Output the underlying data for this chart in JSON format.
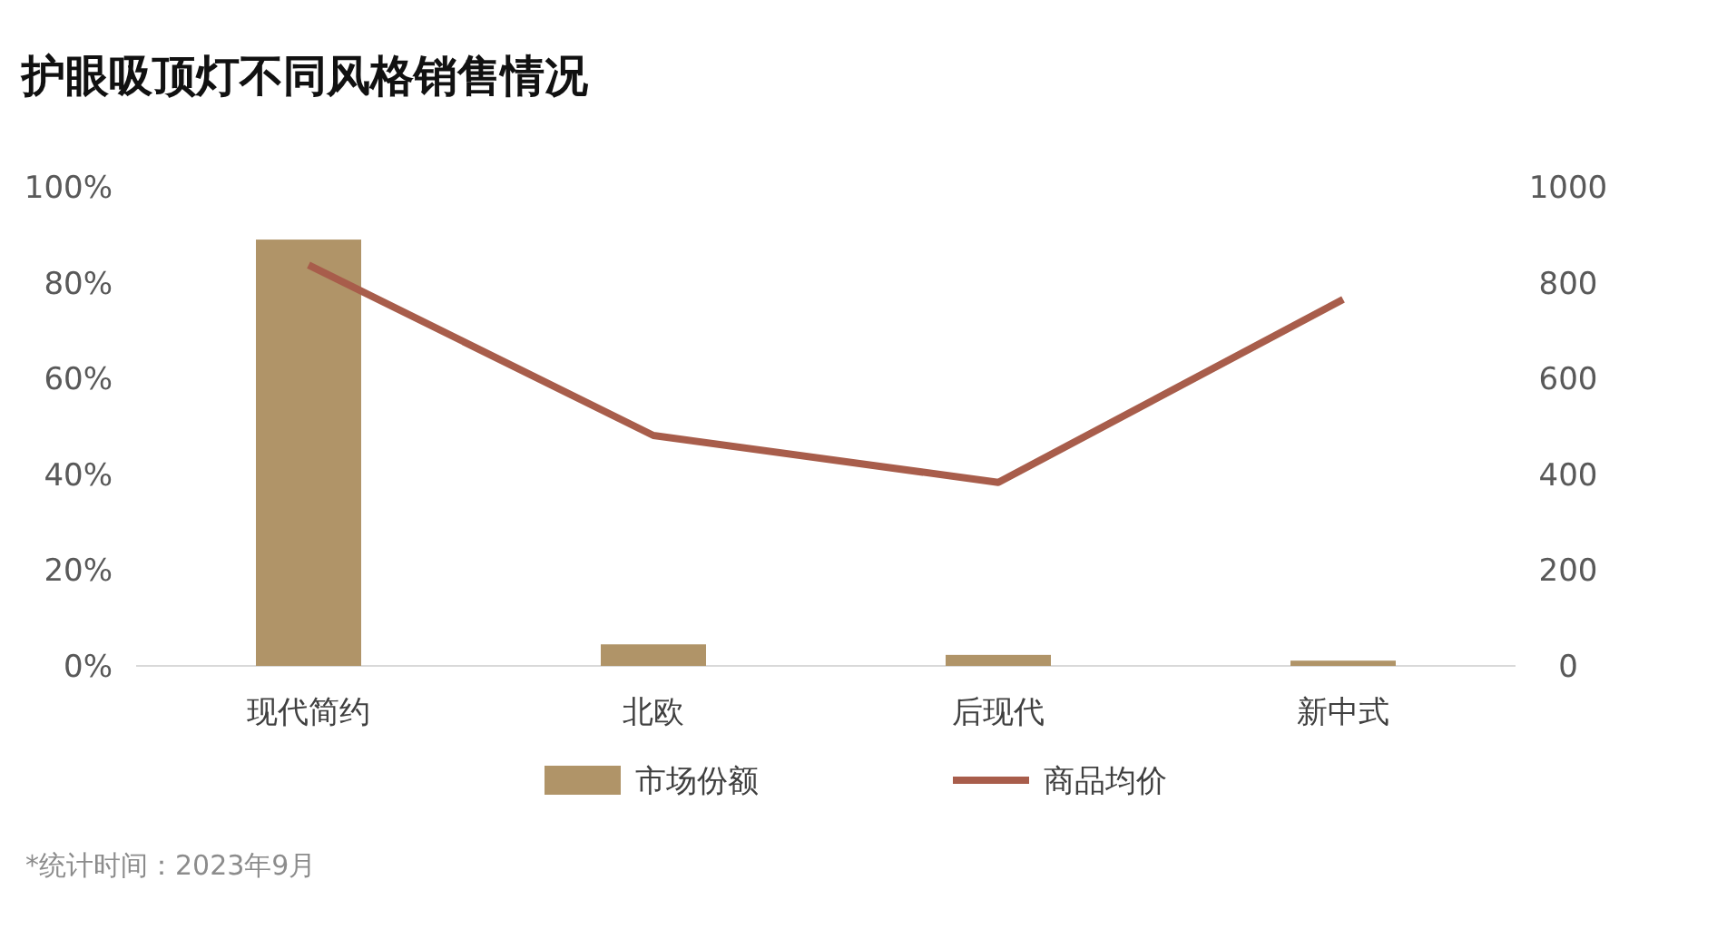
{
  "chart_data": {
    "type": "bar",
    "title": "护眼吸顶灯不同风格销售情况",
    "categories": [
      "现代简约",
      "北欧",
      "后现代",
      "新中式"
    ],
    "series": [
      {
        "name": "市场份额",
        "color": "#b09468",
        "values": [
          89,
          4.5,
          2.3,
          1.1
        ]
      },
      {
        "name": "商品均价",
        "type": "line",
        "axis": "y2",
        "color": "#a85d4b",
        "values": [
          837,
          481,
          383,
          765
        ]
      }
    ],
    "ylim": [
      0,
      100
    ],
    "yticks": [
      {
        "value": 0,
        "label": "0%"
      },
      {
        "value": 20,
        "label": "20%"
      },
      {
        "value": 40,
        "label": "40%"
      },
      {
        "value": 60,
        "label": "60%"
      },
      {
        "value": 80,
        "label": "80%"
      },
      {
        "value": 100,
        "label": "100%"
      }
    ],
    "y2lim": [
      0,
      1000
    ],
    "y2ticks": [
      0,
      200,
      400,
      600,
      800,
      1000
    ],
    "legend": "bottom",
    "grid": false,
    "marker": "none",
    "line_style": "solid",
    "annotations": [
      "*统计时间：2023年9月"
    ]
  }
}
